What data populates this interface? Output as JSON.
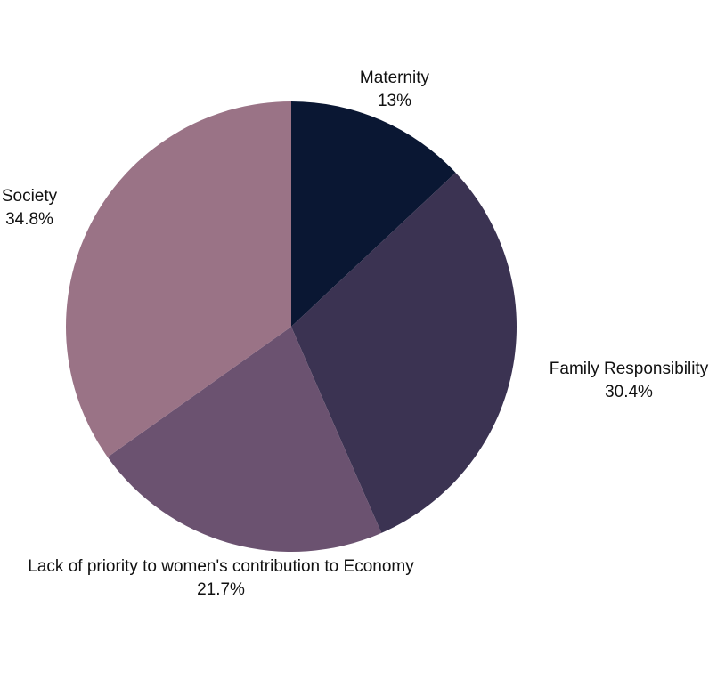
{
  "chart_data": {
    "type": "pie",
    "title": "",
    "legend": "none",
    "start_angle_deg": 0,
    "direction": "clockwise",
    "slices": [
      {
        "label": "Maternity",
        "value": 13,
        "value_label": "13%",
        "color": "#0a1733"
      },
      {
        "label": "Family Responsibility",
        "value": 30.4,
        "value_label": "30.4%",
        "color": "#3b3352"
      },
      {
        "label": "Lack of priority to women's contribution to Economy",
        "value": 21.7,
        "value_label": "21.7%",
        "color": "#6b5270"
      },
      {
        "label": "Society",
        "value": 34.8,
        "value_label": "34.8%",
        "color": "#9a7386"
      }
    ]
  }
}
